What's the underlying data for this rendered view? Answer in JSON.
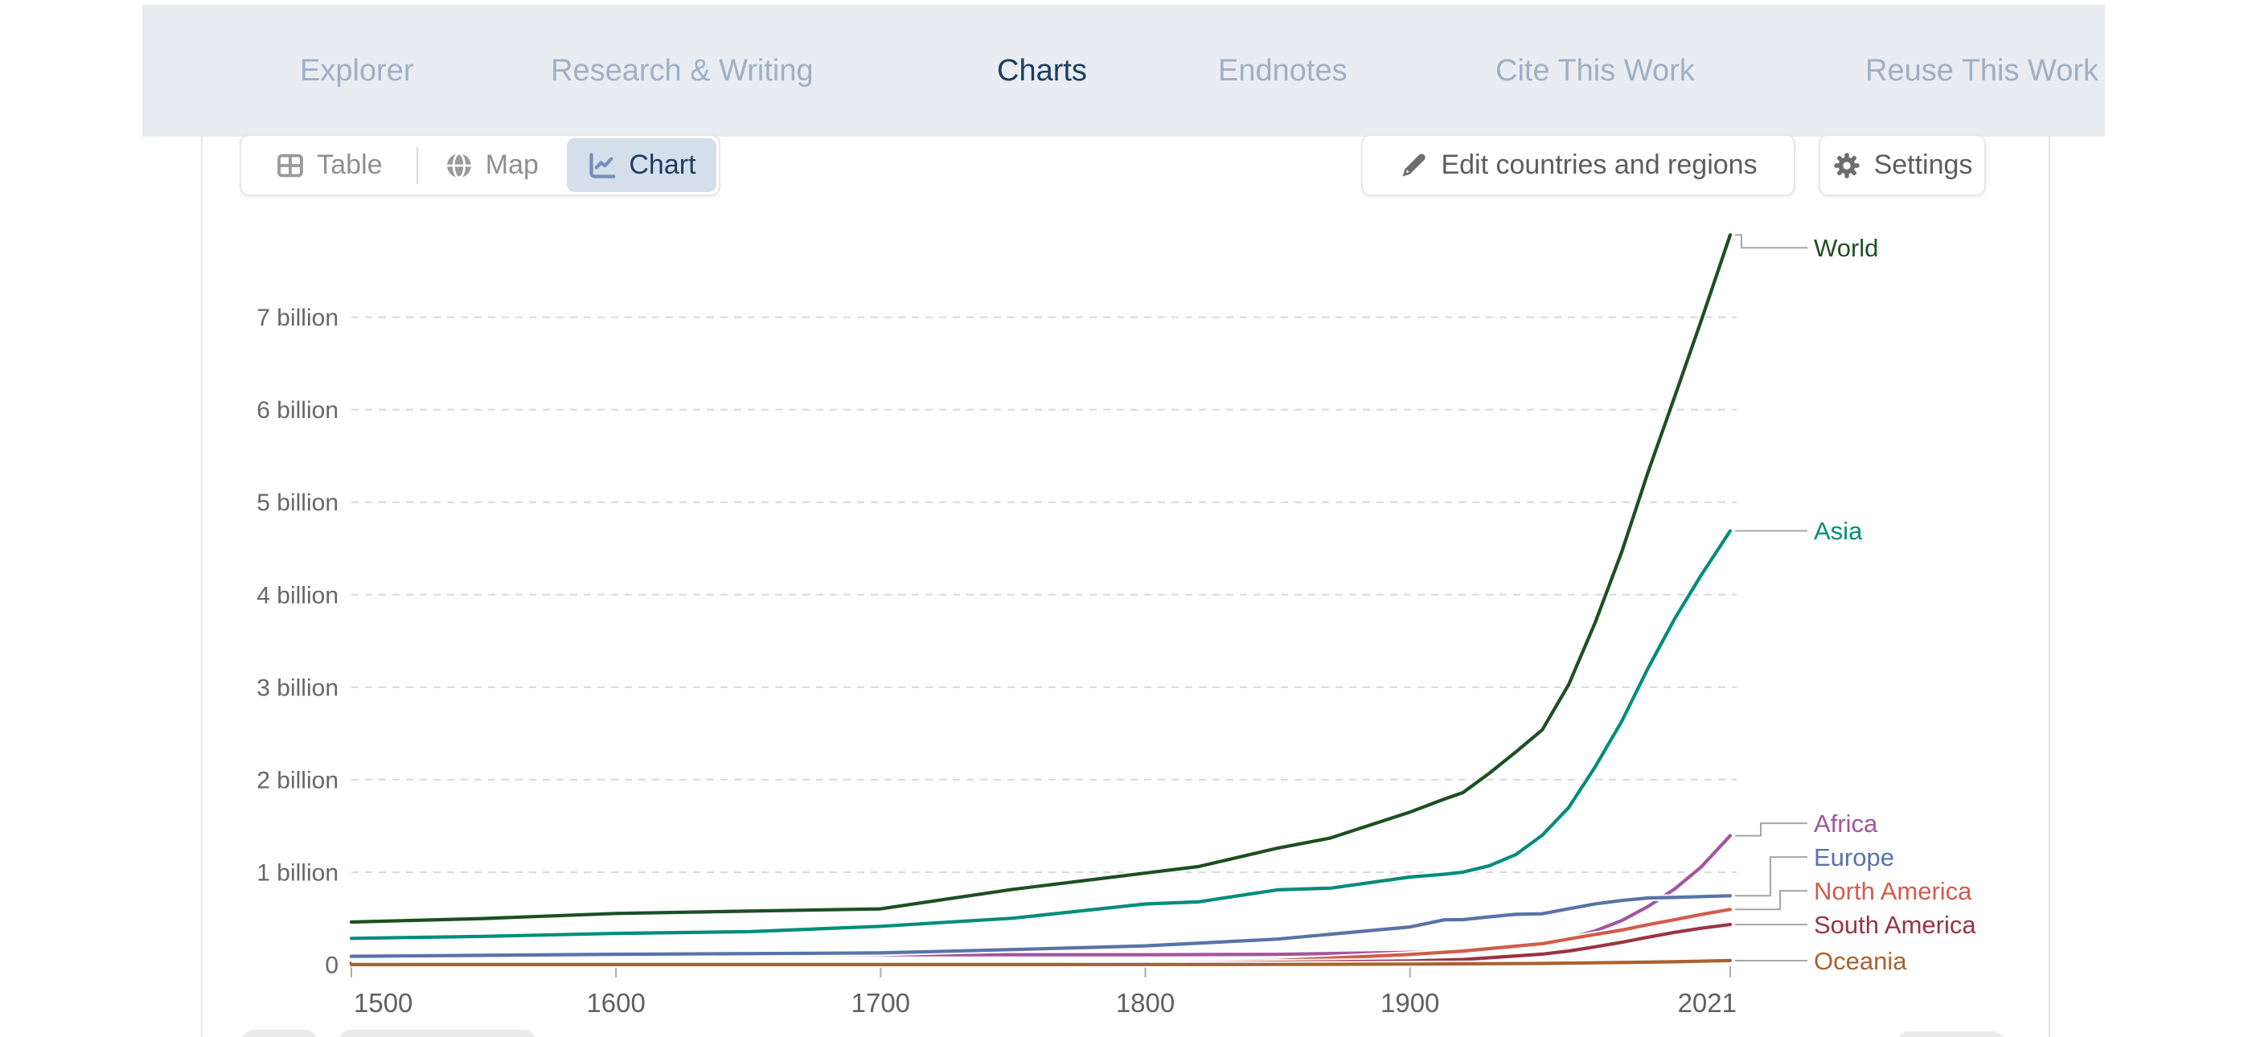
{
  "nav": {
    "tabs": [
      {
        "label": "Explorer",
        "active": false
      },
      {
        "label": "Research & Writing",
        "active": false
      },
      {
        "label": "Charts",
        "active": true
      },
      {
        "label": "Endnotes",
        "active": false
      },
      {
        "label": "Cite This Work",
        "active": false
      },
      {
        "label": "Reuse This Work",
        "active": false
      }
    ]
  },
  "toolbar": {
    "views": [
      {
        "label": "Table",
        "icon": "table-icon",
        "selected": false
      },
      {
        "label": "Map",
        "icon": "globe-icon",
        "selected": false
      },
      {
        "label": "Chart",
        "icon": "line-chart-icon",
        "selected": true
      }
    ],
    "edit_button": {
      "label": "Edit countries and regions",
      "icon": "pencil-icon"
    },
    "settings_button": {
      "label": "Settings",
      "icon": "gear-icon"
    }
  },
  "chart_data": {
    "type": "line",
    "title": "",
    "xlabel": "",
    "ylabel": "",
    "grid": "horizontal-dashed",
    "legend_position": "right-edge-labels",
    "xlim": [
      1500,
      2023
    ],
    "ylim": [
      0,
      7.95
    ],
    "yticks": [
      {
        "value": 7,
        "label": "7 billion"
      },
      {
        "value": 6,
        "label": "6 billion"
      },
      {
        "value": 5,
        "label": "5 billion"
      },
      {
        "value": 4,
        "label": "4 billion"
      },
      {
        "value": 3,
        "label": "3 billion"
      },
      {
        "value": 2,
        "label": "2 billion"
      },
      {
        "value": 1,
        "label": "1 billion"
      },
      {
        "value": 0,
        "label": "0"
      }
    ],
    "xticks": [
      {
        "value": 1500,
        "label": "1500"
      },
      {
        "value": 1600,
        "label": "1600"
      },
      {
        "value": 1700,
        "label": "1700"
      },
      {
        "value": 1800,
        "label": "1800"
      },
      {
        "value": 1900,
        "label": "1900"
      },
      {
        "value": 2021,
        "label": "2021"
      }
    ],
    "colors": {
      "grid": "#d9d9d9",
      "axis_text": "#676767",
      "tick": "#ababab",
      "connector": "#a6a6a6"
    },
    "series": [
      {
        "name": "World",
        "color": "#1d4f22",
        "unit": "billion",
        "points": [
          [
            1500,
            0.461
          ],
          [
            1550,
            0.499
          ],
          [
            1600,
            0.554
          ],
          [
            1650,
            0.579
          ],
          [
            1700,
            0.603
          ],
          [
            1750,
            0.814
          ],
          [
            1800,
            0.99
          ],
          [
            1820,
            1.06
          ],
          [
            1850,
            1.26
          ],
          [
            1870,
            1.37
          ],
          [
            1900,
            1.65
          ],
          [
            1913,
            1.79
          ],
          [
            1920,
            1.86
          ],
          [
            1930,
            2.07
          ],
          [
            1940,
            2.3
          ],
          [
            1950,
            2.54
          ],
          [
            1960,
            3.03
          ],
          [
            1970,
            3.7
          ],
          [
            1980,
            4.46
          ],
          [
            1990,
            5.33
          ],
          [
            2000,
            6.14
          ],
          [
            2010,
            6.96
          ],
          [
            2021,
            7.89
          ]
        ]
      },
      {
        "name": "Asia",
        "color": "#008d7a",
        "unit": "billion",
        "points": [
          [
            1500,
            0.284
          ],
          [
            1550,
            0.306
          ],
          [
            1600,
            0.338
          ],
          [
            1650,
            0.356
          ],
          [
            1700,
            0.415
          ],
          [
            1750,
            0.502
          ],
          [
            1800,
            0.656
          ],
          [
            1820,
            0.679
          ],
          [
            1850,
            0.809
          ],
          [
            1870,
            0.827
          ],
          [
            1900,
            0.947
          ],
          [
            1913,
            0.978
          ],
          [
            1920,
            1.0
          ],
          [
            1930,
            1.07
          ],
          [
            1940,
            1.19
          ],
          [
            1950,
            1.4
          ],
          [
            1960,
            1.7
          ],
          [
            1970,
            2.14
          ],
          [
            1980,
            2.63
          ],
          [
            1990,
            3.21
          ],
          [
            2000,
            3.74
          ],
          [
            2010,
            4.21
          ],
          [
            2021,
            4.69
          ]
        ]
      },
      {
        "name": "Africa",
        "color": "#a2559c",
        "unit": "billion",
        "points": [
          [
            1500,
            0.087
          ],
          [
            1600,
            0.113
          ],
          [
            1700,
            0.107
          ],
          [
            1800,
            0.107
          ],
          [
            1850,
            0.111
          ],
          [
            1900,
            0.133
          ],
          [
            1920,
            0.147
          ],
          [
            1950,
            0.228
          ],
          [
            1960,
            0.284
          ],
          [
            1970,
            0.365
          ],
          [
            1980,
            0.476
          ],
          [
            1990,
            0.63
          ],
          [
            2000,
            0.818
          ],
          [
            2010,
            1.055
          ],
          [
            2021,
            1.394
          ]
        ]
      },
      {
        "name": "Europe",
        "color": "#5873a8",
        "unit": "billion",
        "points": [
          [
            1500,
            0.09
          ],
          [
            1600,
            0.112
          ],
          [
            1700,
            0.127
          ],
          [
            1750,
            0.163
          ],
          [
            1800,
            0.203
          ],
          [
            1850,
            0.276
          ],
          [
            1900,
            0.408
          ],
          [
            1913,
            0.485
          ],
          [
            1920,
            0.487
          ],
          [
            1930,
            0.517
          ],
          [
            1940,
            0.544
          ],
          [
            1950,
            0.55
          ],
          [
            1960,
            0.605
          ],
          [
            1970,
            0.657
          ],
          [
            1980,
            0.694
          ],
          [
            1990,
            0.721
          ],
          [
            2000,
            0.727
          ],
          [
            2010,
            0.736
          ],
          [
            2021,
            0.745
          ]
        ]
      },
      {
        "name": "North America",
        "color": "#d25c4a",
        "unit": "billion",
        "points": [
          [
            1500,
            0.018
          ],
          [
            1600,
            0.012
          ],
          [
            1700,
            0.012
          ],
          [
            1750,
            0.015
          ],
          [
            1800,
            0.024
          ],
          [
            1850,
            0.045
          ],
          [
            1900,
            0.11
          ],
          [
            1920,
            0.147
          ],
          [
            1950,
            0.227
          ],
          [
            1960,
            0.277
          ],
          [
            1970,
            0.327
          ],
          [
            1980,
            0.374
          ],
          [
            1990,
            0.433
          ],
          [
            2000,
            0.486
          ],
          [
            2010,
            0.542
          ],
          [
            2021,
            0.597
          ]
        ]
      },
      {
        "name": "South America",
        "color": "#9a3344",
        "unit": "billion",
        "points": [
          [
            1500,
            0.01
          ],
          [
            1600,
            0.009
          ],
          [
            1700,
            0.01
          ],
          [
            1750,
            0.012
          ],
          [
            1800,
            0.015
          ],
          [
            1850,
            0.025
          ],
          [
            1900,
            0.039
          ],
          [
            1920,
            0.056
          ],
          [
            1950,
            0.114
          ],
          [
            1960,
            0.148
          ],
          [
            1970,
            0.193
          ],
          [
            1980,
            0.242
          ],
          [
            1990,
            0.297
          ],
          [
            2000,
            0.349
          ],
          [
            2010,
            0.394
          ],
          [
            2021,
            0.434
          ]
        ]
      },
      {
        "name": "Oceania",
        "color": "#a9622f",
        "unit": "billion",
        "points": [
          [
            1500,
            0.0012
          ],
          [
            1600,
            0.0012
          ],
          [
            1700,
            0.0012
          ],
          [
            1800,
            0.002
          ],
          [
            1850,
            0.003
          ],
          [
            1900,
            0.006
          ],
          [
            1950,
            0.013
          ],
          [
            1970,
            0.02
          ],
          [
            1990,
            0.027
          ],
          [
            2000,
            0.031
          ],
          [
            2010,
            0.037
          ],
          [
            2021,
            0.044
          ]
        ]
      }
    ]
  }
}
